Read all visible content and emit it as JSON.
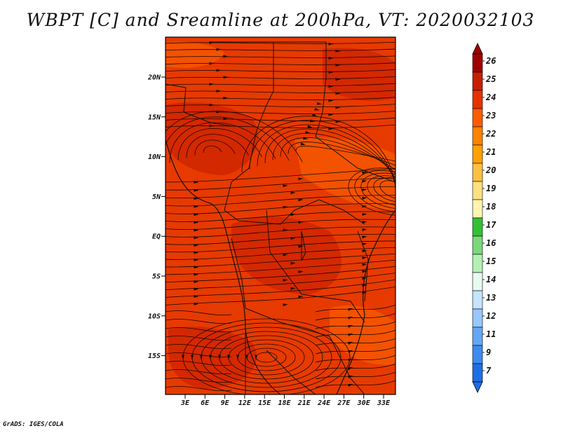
{
  "title": "WBPT [C] and Sreamline at 200hPa, VT: 2020032103",
  "footer": "GrADS: IGES/COLA",
  "lat_labels": [
    "20N",
    "15N",
    "10N",
    "5N",
    "EQ",
    "5S",
    "10S",
    "15S"
  ],
  "lon_labels": [
    "3E",
    "6E",
    "9E",
    "12E",
    "15E",
    "18E",
    "21E",
    "24E",
    "27E",
    "30E",
    "33E"
  ],
  "colorbar": {
    "labels": [
      "26",
      "25",
      "24",
      "23",
      "22",
      "21",
      "20",
      "19",
      "18",
      "17",
      "16",
      "15",
      "14",
      "13",
      "12",
      "11",
      "9",
      "7"
    ],
    "colors": [
      "#a00000",
      "#c81e00",
      "#e63200",
      "#ff5a00",
      "#ff8200",
      "#ffa000",
      "#ffc040",
      "#ffe080",
      "#fff5b0",
      "#34c034",
      "#7ad87a",
      "#b4f0b4",
      "#e8faf0",
      "#c4e4ff",
      "#96c8ff",
      "#64a8f5",
      "#3c8cf0",
      "#1e6ee6"
    ],
    "top_arrow_color": "#a00000",
    "bottom_arrow_color": "#1e6ee6"
  },
  "field_colors": {
    "base": "#e63a00",
    "warm": "#d42800",
    "cool": "#f35200"
  }
}
